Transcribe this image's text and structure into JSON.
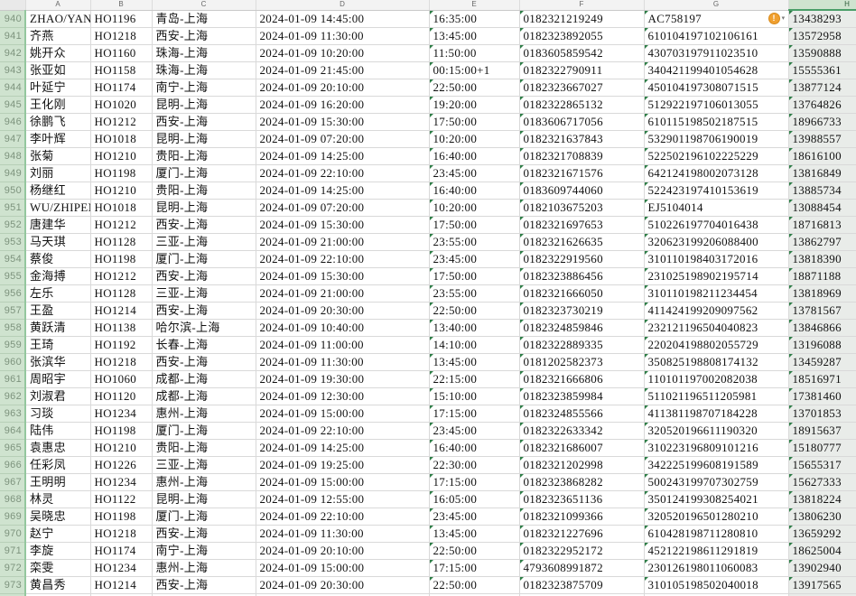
{
  "app": {
    "kind": "spreadsheet-grid",
    "selected_column": "H",
    "colors": {
      "selection_green_bg": "#cfe3cf",
      "selection_green_border": "#4a9e68",
      "selected_cells_overlay": "#e9ece9",
      "stored_as_text_triangle": "#2d7d46",
      "warning_orange": "#f0a030",
      "gridline": "#d9d9d9"
    }
  },
  "column_headers": {
    "corner": "",
    "letters": [
      "A",
      "B",
      "C",
      "D",
      "E",
      "F",
      "G",
      "H"
    ]
  },
  "error_indicator": {
    "icon": "warning-exclamation-icon",
    "caret": "▾",
    "glyph": "!",
    "cell": "G940"
  },
  "rows": [
    {
      "num": "940",
      "name": "ZHAO/YAN",
      "flight": "HO1196",
      "route": "青岛-上海",
      "depart": "2024-01-09 14:45:00",
      "arrive": "16:35:00",
      "ticket": "0182321219249",
      "id": "AC758197",
      "phone": "13438293",
      "warning": true
    },
    {
      "num": "941",
      "name": "齐燕",
      "flight": "HO1218",
      "route": "西安-上海",
      "depart": "2024-01-09 11:30:00",
      "arrive": "13:45:00",
      "ticket": "0182323892055",
      "id": "610104197102106161",
      "phone": "13572958",
      "warning": false
    },
    {
      "num": "942",
      "name": "姚开众",
      "flight": "HO1160",
      "route": "珠海-上海",
      "depart": "2024-01-09 10:20:00",
      "arrive": "11:50:00",
      "ticket": "0183605859542",
      "id": "430703197911023510",
      "phone": "13590888",
      "warning": false
    },
    {
      "num": "943",
      "name": "张亚如",
      "flight": "HO1158",
      "route": "珠海-上海",
      "depart": "2024-01-09 21:45:00",
      "arrive": "00:15:00+1",
      "ticket": "0182322790911",
      "id": "340421199401054628",
      "phone": "15555361",
      "warning": false
    },
    {
      "num": "944",
      "name": "叶延宁",
      "flight": "HO1174",
      "route": "南宁-上海",
      "depart": "2024-01-09 20:10:00",
      "arrive": "22:50:00",
      "ticket": "0182323667027",
      "id": "450104197308071515",
      "phone": "13877124",
      "warning": false
    },
    {
      "num": "945",
      "name": "王化刚",
      "flight": "HO1020",
      "route": "昆明-上海",
      "depart": "2024-01-09 16:20:00",
      "arrive": "19:20:00",
      "ticket": "0182322865132",
      "id": "512922197106013055",
      "phone": "13764826",
      "warning": false
    },
    {
      "num": "946",
      "name": "徐鹏飞",
      "flight": "HO1212",
      "route": "西安-上海",
      "depart": "2024-01-09 15:30:00",
      "arrive": "17:50:00",
      "ticket": "0183606717056",
      "id": "610115198502187515",
      "phone": "18966733",
      "warning": false
    },
    {
      "num": "947",
      "name": "李叶辉",
      "flight": "HO1018",
      "route": "昆明-上海",
      "depart": "2024-01-09 07:20:00",
      "arrive": "10:20:00",
      "ticket": "0182321637843",
      "id": "532901198706190019",
      "phone": "13988557",
      "warning": false
    },
    {
      "num": "948",
      "name": "张菊",
      "flight": "HO1210",
      "route": "贵阳-上海",
      "depart": "2024-01-09 14:25:00",
      "arrive": "16:40:00",
      "ticket": "0182321708839",
      "id": "522502196102225229",
      "phone": "18616100",
      "warning": false
    },
    {
      "num": "949",
      "name": "刘丽",
      "flight": "HO1198",
      "route": "厦门-上海",
      "depart": "2024-01-09 22:10:00",
      "arrive": "23:45:00",
      "ticket": "0182321671576",
      "id": "642124198002073128",
      "phone": "13816849",
      "warning": false
    },
    {
      "num": "950",
      "name": "杨继红",
      "flight": "HO1210",
      "route": "贵阳-上海",
      "depart": "2024-01-09 14:25:00",
      "arrive": "16:40:00",
      "ticket": "0183609744060",
      "id": "522423197410153619",
      "phone": "13885734",
      "warning": false
    },
    {
      "num": "951",
      "name": "WU/ZHIPEN",
      "flight": "HO1018",
      "route": "昆明-上海",
      "depart": "2024-01-09 07:20:00",
      "arrive": "10:20:00",
      "ticket": "0182103675203",
      "id": "EJ5104014",
      "phone": "13088454",
      "warning": false
    },
    {
      "num": "952",
      "name": "唐建华",
      "flight": "HO1212",
      "route": "西安-上海",
      "depart": "2024-01-09 15:30:00",
      "arrive": "17:50:00",
      "ticket": "0182321697653",
      "id": "510226197704016438",
      "phone": "18716813",
      "warning": false
    },
    {
      "num": "953",
      "name": "马天琪",
      "flight": "HO1128",
      "route": "三亚-上海",
      "depart": "2024-01-09 21:00:00",
      "arrive": "23:55:00",
      "ticket": "0182321626635",
      "id": "320623199206088400",
      "phone": "13862797",
      "warning": false
    },
    {
      "num": "954",
      "name": "蔡俊",
      "flight": "HO1198",
      "route": "厦门-上海",
      "depart": "2024-01-09 22:10:00",
      "arrive": "23:45:00",
      "ticket": "0182322919560",
      "id": "310110198403172016",
      "phone": "13818390",
      "warning": false
    },
    {
      "num": "955",
      "name": "金海搏",
      "flight": "HO1212",
      "route": "西安-上海",
      "depart": "2024-01-09 15:30:00",
      "arrive": "17:50:00",
      "ticket": "0182323886456",
      "id": "231025198902195714",
      "phone": "18871188",
      "warning": false
    },
    {
      "num": "956",
      "name": "左乐",
      "flight": "HO1128",
      "route": "三亚-上海",
      "depart": "2024-01-09 21:00:00",
      "arrive": "23:55:00",
      "ticket": "0182321666050",
      "id": "310110198211234454",
      "phone": "13818969",
      "warning": false
    },
    {
      "num": "957",
      "name": "王盈",
      "flight": "HO1214",
      "route": "西安-上海",
      "depart": "2024-01-09 20:30:00",
      "arrive": "22:50:00",
      "ticket": "0182323730219",
      "id": "411424199209097562",
      "phone": "13781567",
      "warning": false
    },
    {
      "num": "958",
      "name": "黄跃清",
      "flight": "HO1138",
      "route": "哈尔滨-上海",
      "depart": "2024-01-09 10:40:00",
      "arrive": "13:40:00",
      "ticket": "0182324859846",
      "id": "232121196504040823",
      "phone": "13846866",
      "warning": false
    },
    {
      "num": "959",
      "name": "王琦",
      "flight": "HO1192",
      "route": "长春-上海",
      "depart": "2024-01-09 11:00:00",
      "arrive": "14:10:00",
      "ticket": "0182322889335",
      "id": "220204198802055729",
      "phone": "13196088",
      "warning": false
    },
    {
      "num": "960",
      "name": "张滨华",
      "flight": "HO1218",
      "route": "西安-上海",
      "depart": "2024-01-09 11:30:00",
      "arrive": "13:45:00",
      "ticket": "0181202582373",
      "id": "350825198808174132",
      "phone": "13459287",
      "warning": false
    },
    {
      "num": "961",
      "name": "周昭宇",
      "flight": "HO1060",
      "route": "成都-上海",
      "depart": "2024-01-09 19:30:00",
      "arrive": "22:15:00",
      "ticket": "0182321666806",
      "id": "110101197002082038",
      "phone": "18516971",
      "warning": false
    },
    {
      "num": "962",
      "name": "刘淑君",
      "flight": "HO1120",
      "route": "成都-上海",
      "depart": "2024-01-09 12:30:00",
      "arrive": "15:10:00",
      "ticket": "0182323859984",
      "id": "511021196511205981",
      "phone": "17381460",
      "warning": false
    },
    {
      "num": "963",
      "name": "习琰",
      "flight": "HO1234",
      "route": "惠州-上海",
      "depart": "2024-01-09 15:00:00",
      "arrive": "17:15:00",
      "ticket": "0182324855566",
      "id": "411381198707184228",
      "phone": "13701853",
      "warning": false
    },
    {
      "num": "964",
      "name": "陆伟",
      "flight": "HO1198",
      "route": "厦门-上海",
      "depart": "2024-01-09 22:10:00",
      "arrive": "23:45:00",
      "ticket": "0182322633342",
      "id": "320520196611190320",
      "phone": "18915637",
      "warning": false
    },
    {
      "num": "965",
      "name": "袁惠忠",
      "flight": "HO1210",
      "route": "贵阳-上海",
      "depart": "2024-01-09 14:25:00",
      "arrive": "16:40:00",
      "ticket": "0182321686007",
      "id": "310223196809101216",
      "phone": "15180777",
      "warning": false
    },
    {
      "num": "966",
      "name": "任彩凤",
      "flight": "HO1226",
      "route": "三亚-上海",
      "depart": "2024-01-09 19:25:00",
      "arrive": "22:30:00",
      "ticket": "0182321202998",
      "id": "342225199608191589",
      "phone": "15655317",
      "warning": false
    },
    {
      "num": "967",
      "name": "王明明",
      "flight": "HO1234",
      "route": "惠州-上海",
      "depart": "2024-01-09 15:00:00",
      "arrive": "17:15:00",
      "ticket": "0182323868282",
      "id": "500243199707302759",
      "phone": "15627333",
      "warning": false
    },
    {
      "num": "968",
      "name": "林灵",
      "flight": "HO1122",
      "route": "昆明-上海",
      "depart": "2024-01-09 12:55:00",
      "arrive": "16:05:00",
      "ticket": "0182323651136",
      "id": "350124199308254021",
      "phone": "13818224",
      "warning": false
    },
    {
      "num": "969",
      "name": "吴晓忠",
      "flight": "HO1198",
      "route": "厦门-上海",
      "depart": "2024-01-09 22:10:00",
      "arrive": "23:45:00",
      "ticket": "0182321099366",
      "id": "320520196501280210",
      "phone": "13806230",
      "warning": false
    },
    {
      "num": "970",
      "name": "赵宁",
      "flight": "HO1218",
      "route": "西安-上海",
      "depart": "2024-01-09 11:30:00",
      "arrive": "13:45:00",
      "ticket": "0182321227696",
      "id": "610428198711280810",
      "phone": "13659292",
      "warning": false
    },
    {
      "num": "971",
      "name": "李旋",
      "flight": "HO1174",
      "route": "南宁-上海",
      "depart": "2024-01-09 20:10:00",
      "arrive": "22:50:00",
      "ticket": "0182322952172",
      "id": "452122198611291819",
      "phone": "18625004",
      "warning": false
    },
    {
      "num": "972",
      "name": "栾雯",
      "flight": "HO1234",
      "route": "惠州-上海",
      "depart": "2024-01-09 15:00:00",
      "arrive": "17:15:00",
      "ticket": "4793608991872",
      "id": "230126198011060083",
      "phone": "13902940",
      "warning": false
    },
    {
      "num": "973",
      "name": "黄昌秀",
      "flight": "HO1214",
      "route": "西安-上海",
      "depart": "2024-01-09 20:30:00",
      "arrive": "22:50:00",
      "ticket": "0182323875709",
      "id": "310105198502040018",
      "phone": "13917565",
      "warning": false
    },
    {
      "num": "974",
      "name": "",
      "flight": "",
      "route": "",
      "depart": "",
      "arrive": "",
      "ticket": "",
      "id": "",
      "phone": "",
      "warning": false
    }
  ]
}
